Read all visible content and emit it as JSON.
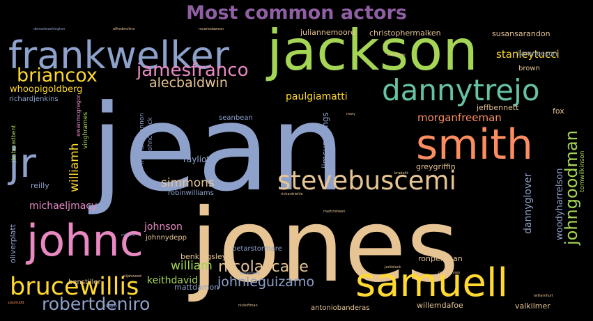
{
  "title": "Most common actors",
  "colors": {
    "background": "#000000",
    "title": "#8f5fa3"
  },
  "chart_data": {
    "type": "wordcloud",
    "title": "Most common actors",
    "words": [
      {
        "text": "jean",
        "weight": 100,
        "color": "#8ea1cb"
      },
      {
        "text": "jones",
        "weight": 95,
        "color": "#e6c494"
      },
      {
        "text": "jackson",
        "weight": 70,
        "color": "#a5d555"
      },
      {
        "text": "smith",
        "weight": 52,
        "color": "#fc8d61"
      },
      {
        "text": "johnc",
        "weight": 50,
        "color": "#e889c2"
      },
      {
        "text": "samuell",
        "weight": 47,
        "color": "#ffd92f"
      },
      {
        "text": "frankwelker",
        "weight": 44,
        "color": "#8ea1cb"
      },
      {
        "text": "jr",
        "weight": 42,
        "color": "#8ea1cb"
      },
      {
        "text": "dannytrejo",
        "weight": 38,
        "color": "#66c2a5"
      },
      {
        "text": "stevebuscemi",
        "weight": 33,
        "color": "#e6c494"
      },
      {
        "text": "brucewillis",
        "weight": 30,
        "color": "#ffd92f"
      },
      {
        "text": "briancox",
        "weight": 24,
        "color": "#ffd92f"
      },
      {
        "text": "jamesfranco",
        "weight": 23,
        "color": "#e889c2"
      },
      {
        "text": "robertdeniro",
        "weight": 22,
        "color": "#8ea1cb"
      },
      {
        "text": "johngoodman",
        "weight": 22,
        "color": "#a5d555"
      },
      {
        "text": "nicolascage",
        "weight": 19,
        "color": "#e6c494"
      },
      {
        "text": "alecbaldwin",
        "weight": 18,
        "color": "#e6c494"
      },
      {
        "text": "johnleguizamo",
        "weight": 17,
        "color": "#8ea1cb"
      },
      {
        "text": "william",
        "weight": 16,
        "color": "#a5d555"
      },
      {
        "text": "williamh",
        "weight": 16,
        "color": "#ffd92f"
      },
      {
        "text": "simmons",
        "weight": 15,
        "color": "#e6c494"
      },
      {
        "text": "stanleytucci",
        "weight": 14,
        "color": "#ffd92f"
      },
      {
        "text": "morganfreeman",
        "weight": 14,
        "color": "#fc8d61"
      },
      {
        "text": "michaeljmacy",
        "weight": 13,
        "color": "#e889c2"
      },
      {
        "text": "paulgiamatti",
        "weight": 13,
        "color": "#ffd92f"
      },
      {
        "text": "dannyglover",
        "weight": 13,
        "color": "#8ea1cb"
      },
      {
        "text": "whoopigoldberg",
        "weight": 12,
        "color": "#ffd92f"
      },
      {
        "text": "johnson",
        "weight": 12,
        "color": "#e889c2"
      },
      {
        "text": "keithdavid",
        "weight": 12,
        "color": "#a5d555"
      },
      {
        "text": "woodyharrelson",
        "weight": 11,
        "color": "#8ea1cb"
      },
      {
        "text": "rayliotta",
        "weight": 11,
        "color": "#8ea1cb"
      },
      {
        "text": "jimcummings",
        "weight": 11,
        "color": "#8ea1cb"
      },
      {
        "text": "christophermalken",
        "weight": 10,
        "color": "#e6c494"
      },
      {
        "text": "juliannemoore",
        "weight": 10,
        "color": "#e6c494"
      },
      {
        "text": "susansarandon",
        "weight": 10,
        "color": "#e6c494"
      },
      {
        "text": "willemdafoe",
        "weight": 10,
        "color": "#e6c494"
      },
      {
        "text": "antoniobanderas",
        "weight": 9,
        "color": "#e6c494"
      },
      {
        "text": "valkilmer",
        "weight": 10,
        "color": "#e6c494"
      },
      {
        "text": "ronperlman",
        "weight": 10,
        "color": "#e6c494"
      },
      {
        "text": "mattdamon",
        "weight": 10,
        "color": "#8ea1cb"
      },
      {
        "text": "benstiller",
        "weight": 9,
        "color": "#e6c494"
      },
      {
        "text": "benkingsley",
        "weight": 10,
        "color": "#e6c494"
      },
      {
        "text": "oliverplatt",
        "weight": 10,
        "color": "#8ea1cb"
      },
      {
        "text": "richardjenkins",
        "weight": 9,
        "color": "#8ea1cb"
      },
      {
        "text": "robinwilliams",
        "weight": 9,
        "color": "#8ea1cb"
      },
      {
        "text": "johnnydepp",
        "weight": 9,
        "color": "#e6c494"
      },
      {
        "text": "petarstormare",
        "weight": 9,
        "color": "#8ea1cb"
      },
      {
        "text": "greygriffin",
        "weight": 10,
        "color": "#e6c494"
      },
      {
        "text": "jeffbennett",
        "weight": 10,
        "color": "#e6c494"
      },
      {
        "text": "seanbean",
        "weight": 9,
        "color": "#8ea1cb"
      },
      {
        "text": "reilly",
        "weight": 10,
        "color": "#8ea1cb"
      },
      {
        "text": "liamneeson",
        "weight": 9,
        "color": "#8ea1cb"
      },
      {
        "text": "brown",
        "weight": 9,
        "color": "#e6c494"
      },
      {
        "text": "fox",
        "weight": 10,
        "color": "#e6c494"
      },
      {
        "text": "tomwilkinson",
        "weight": 8,
        "color": "#a5d555"
      },
      {
        "text": "vinghrames",
        "weight": 8,
        "color": "#a5d555"
      },
      {
        "text": "ewanmcgregor",
        "weight": 7,
        "color": "#e889c2"
      },
      {
        "text": "jimbroadbent",
        "weight": 7,
        "color": "#a5d555"
      },
      {
        "text": "johncusack",
        "weight": 8,
        "color": "#8ea1cb"
      },
      {
        "text": "michaelshannon",
        "weight": 8,
        "color": "#8ea1cb"
      },
      {
        "text": "jackblack",
        "weight": 4,
        "color": "#e6c494"
      },
      {
        "text": "elijahwood",
        "weight": 4,
        "color": "#e6c494"
      },
      {
        "text": "ralphfiennes",
        "weight": 4,
        "color": "#e6c494"
      },
      {
        "text": "mharris",
        "weight": 4,
        "color": "#8ea1cb"
      },
      {
        "text": "danieljones",
        "weight": 4,
        "color": "#8ea1cb"
      },
      {
        "text": "richardriehle",
        "weight": 4,
        "color": "#e6c494"
      },
      {
        "text": "babyjones",
        "weight": 4,
        "color": "#e6c494"
      },
      {
        "text": "martinsheen",
        "weight": 4,
        "color": "#e6c494"
      },
      {
        "text": "mary",
        "weight": 4,
        "color": "#e6c494"
      },
      {
        "text": "paulrudd",
        "weight": 4,
        "color": "#fc8d61"
      },
      {
        "text": "billnighy",
        "weight": 4,
        "color": "#8ea1cb"
      },
      {
        "text": "alfredmolina",
        "weight": 4,
        "color": "#e6c494"
      },
      {
        "text": "rosariodawson",
        "weight": 4,
        "color": "#e6c494"
      },
      {
        "text": "denzelwashington",
        "weight": 4,
        "color": "#8ea1cb"
      },
      {
        "text": "williamhurt",
        "weight": 4,
        "color": "#e6c494"
      },
      {
        "text": "nickoffman",
        "weight": 4,
        "color": "#e6c494"
      },
      {
        "text": "bradpitt",
        "weight": 4,
        "color": "#e6c494"
      }
    ]
  }
}
